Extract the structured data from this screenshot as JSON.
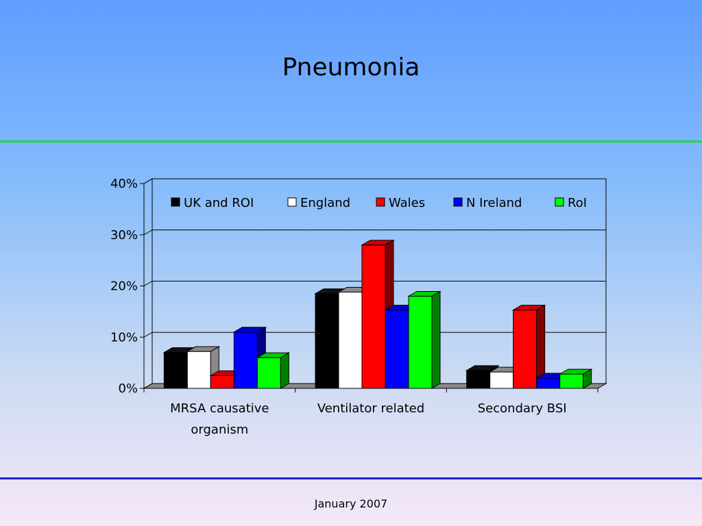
{
  "slide": {
    "title": "Pneumonia",
    "footer": "January 2007"
  },
  "colors": {
    "rule_top": "#22dd33",
    "rule_bottom": "#1a22cc"
  },
  "chart_data": {
    "type": "bar",
    "categories": [
      [
        "MRSA causative",
        "organism"
      ],
      [
        "Ventilator related"
      ],
      [
        "Secondary BSI"
      ]
    ],
    "series": [
      {
        "name": "UK and ROI",
        "color": "#000000",
        "values": [
          7,
          18.5,
          3.5
        ]
      },
      {
        "name": "England",
        "color": "#ffffff",
        "values": [
          7.2,
          18.8,
          3.2
        ]
      },
      {
        "name": "Wales",
        "color": "#ff0000",
        "values": [
          2.5,
          28,
          15.3
        ]
      },
      {
        "name": "N Ireland",
        "color": "#0000ff",
        "values": [
          11,
          15.3,
          2
        ]
      },
      {
        "name": "RoI",
        "color": "#00ff00",
        "values": [
          6,
          18,
          2.8
        ]
      }
    ],
    "yticks": [
      "0%",
      "10%",
      "20%",
      "30%",
      "40%"
    ],
    "ylim": [
      0,
      40
    ],
    "grid": true,
    "legend": "top",
    "style": "3d"
  }
}
